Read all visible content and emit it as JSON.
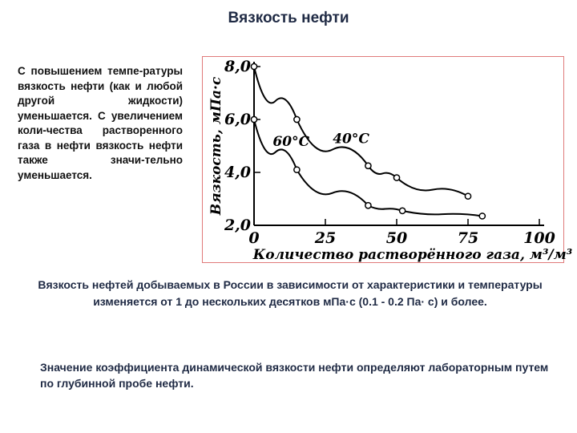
{
  "page": {
    "title": "Вязкость нефти",
    "left_paragraph": "С повышением темпе-ратуры вязкость нефти (как и любой другой жидкости) уменьшается. С увеличением коли-чества растворенного газа в нефти вязкость нефти также значи-тельно уменьшается.",
    "caption": "Вязкость нефтей добываемых в России в зависимости от характеристики и температуры изменяется от 1 до нескольких десятков мПа·с (0.1 - 0.2 Па· с) и более.",
    "note": "Значение коэффициента динамической вязкости нефти определяют лабораторным путем по глубинной пробе нефти."
  },
  "chart_data": {
    "type": "line",
    "xlabel": "Количество растворённого газа, м³/м³",
    "ylabel": "Вязкость, мПа·с",
    "xlim": [
      0,
      100
    ],
    "ylim": [
      2,
      8
    ],
    "xticks": [
      0,
      25,
      50,
      75,
      100
    ],
    "yticks": [
      2,
      4,
      6,
      8
    ],
    "ytick_labels": [
      "2,0",
      "4,0",
      "6,0",
      "8,0"
    ],
    "series": [
      {
        "name": "40°C",
        "x": [
          0,
          15,
          40,
          50,
          75
        ],
        "y": [
          8.0,
          6.0,
          4.25,
          3.8,
          3.1
        ]
      },
      {
        "name": "60°C",
        "x": [
          0,
          15,
          40,
          52,
          80
        ],
        "y": [
          6.0,
          4.1,
          2.75,
          2.55,
          2.35
        ]
      }
    ],
    "series_labels": [
      "60°C",
      "40°C"
    ],
    "grid": false
  }
}
